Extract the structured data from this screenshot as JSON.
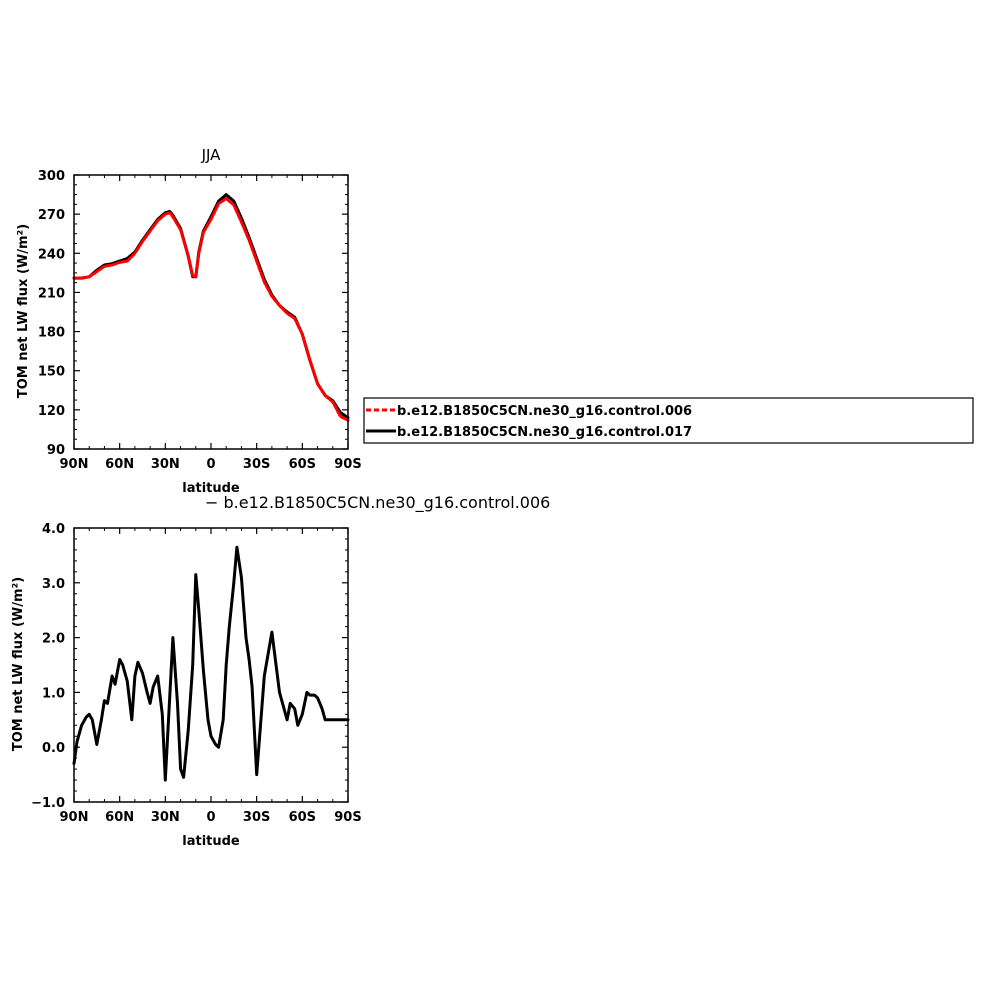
{
  "chart_data": [
    {
      "type": "line",
      "title": "JJA",
      "xlabel": "latitude",
      "ylabel": "TOM net LW flux (W/m²)",
      "x_ticks": [
        "90N",
        "60N",
        "30N",
        "0",
        "30S",
        "60S",
        "90S"
      ],
      "y_ticks": [
        "90",
        "120",
        "150",
        "180",
        "210",
        "240",
        "270",
        "300"
      ],
      "xlim": [
        90,
        -90
      ],
      "ylim": [
        90,
        300
      ],
      "legend_position": "right",
      "x": [
        90,
        85,
        80,
        75,
        70,
        65,
        60,
        55,
        50,
        45,
        40,
        35,
        30,
        27,
        25,
        20,
        15,
        12,
        10,
        8,
        5,
        0,
        -5,
        -10,
        -15,
        -20,
        -25,
        -30,
        -35,
        -40,
        -45,
        -50,
        -55,
        -60,
        -65,
        -70,
        -75,
        -80,
        -85,
        -90
      ],
      "series": [
        {
          "name": "b.e12.B1850C5CN.ne30_g16.control.006",
          "color": "#ff0000",
          "dash": "dashed",
          "values": [
            221,
            221,
            222,
            226,
            230,
            231,
            233,
            234,
            240,
            249,
            257,
            265,
            270,
            271,
            268,
            258,
            238,
            223,
            222,
            240,
            256,
            266,
            278,
            282,
            277,
            264,
            250,
            234,
            218,
            207,
            200,
            194,
            190,
            178,
            158,
            140,
            131,
            126,
            115,
            112
          ]
        },
        {
          "name": "b.e12.B1850C5CN.ne30_g16.control.017",
          "color": "#000000",
          "dash": "solid",
          "values": [
            221,
            221,
            222,
            227,
            231,
            232,
            234,
            236,
            241,
            250,
            258,
            266,
            271,
            272,
            269,
            259,
            238,
            222,
            222,
            241,
            257,
            268,
            280,
            285,
            280,
            267,
            252,
            236,
            220,
            208,
            200,
            195,
            191,
            178,
            158,
            140,
            131,
            127,
            118,
            114
          ]
        }
      ]
    },
    {
      "type": "line",
      "title": "− b.e12.B1850C5CN.ne30_g16.control.006",
      "xlabel": "latitude",
      "ylabel": "TOM net LW flux (W/m²)",
      "x_ticks": [
        "90N",
        "60N",
        "30N",
        "0",
        "30S",
        "60S",
        "90S"
      ],
      "y_ticks": [
        "−1.0",
        "0.0",
        "1.0",
        "2.0",
        "3.0",
        "4.0"
      ],
      "xlim": [
        90,
        -90
      ],
      "ylim": [
        -1.0,
        4.0
      ],
      "x": [
        90,
        88,
        85,
        82,
        80,
        78,
        75,
        72,
        70,
        68,
        65,
        63,
        60,
        58,
        55,
        52,
        50,
        48,
        45,
        42,
        40,
        38,
        35,
        32,
        30,
        25,
        22,
        20,
        18,
        15,
        12,
        10,
        8,
        5,
        2,
        0,
        -3,
        -5,
        -8,
        -10,
        -12,
        -15,
        -17,
        -20,
        -23,
        -25,
        -27,
        -30,
        -35,
        -40,
        -45,
        -50,
        -52,
        -55,
        -57,
        -60,
        -63,
        -65,
        -68,
        -70,
        -73,
        -75,
        -78,
        -80,
        -85,
        -88,
        -90
      ],
      "series": [
        {
          "name": "",
          "color": "#000000",
          "dash": "solid",
          "values": [
            -0.3,
            0.1,
            0.4,
            0.55,
            0.6,
            0.5,
            0.05,
            0.5,
            0.85,
            0.8,
            1.3,
            1.15,
            1.6,
            1.5,
            1.2,
            0.5,
            1.3,
            1.55,
            1.35,
            1.0,
            0.8,
            1.1,
            1.3,
            0.6,
            -0.6,
            2.0,
            0.8,
            -0.4,
            -0.55,
            0.3,
            1.5,
            3.15,
            2.5,
            1.4,
            0.5,
            0.2,
            0.05,
            0.0,
            0.5,
            1.5,
            2.2,
            3.0,
            3.65,
            3.1,
            2.0,
            1.6,
            1.1,
            -0.5,
            1.3,
            2.1,
            1.0,
            0.5,
            0.8,
            0.7,
            0.4,
            0.6,
            1.0,
            0.95,
            0.95,
            0.9,
            0.7,
            0.5,
            0.5,
            0.5,
            0.5,
            0.5,
            0.5
          ]
        }
      ]
    }
  ]
}
